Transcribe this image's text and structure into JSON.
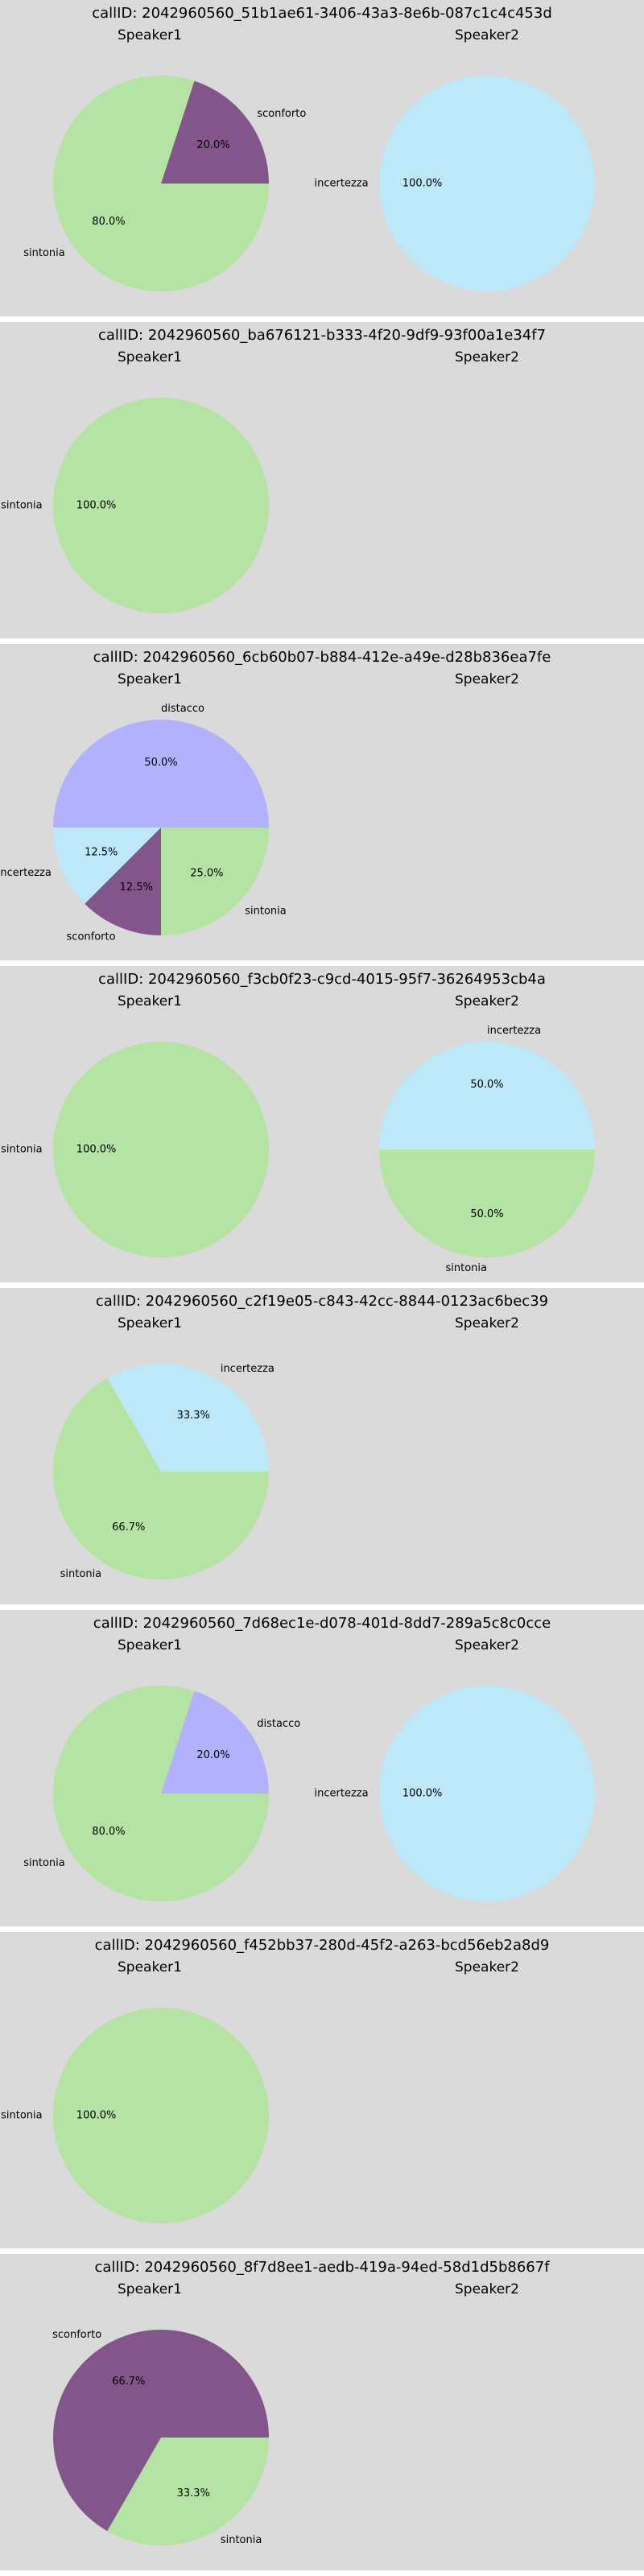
{
  "style": {
    "panel_background": "#dadada",
    "separator": "#ffffff",
    "category_colors": {
      "sintonia": "#b5e3a3",
      "sconforto": "#82568a",
      "incertezza": "#bde8f8",
      "distacco": "#b1b1fd"
    }
  },
  "chart_data": [
    {
      "type": "pie",
      "title": "callID: 2042960560_51b1ae61-3406-43a3-8e6b-087c1c4c453d",
      "speakers": [
        {
          "name": "Speaker1",
          "slices": [
            {
              "label": "sconforto",
              "value": 20.0,
              "pct_text": "20.0%"
            },
            {
              "label": "sintonia",
              "value": 80.0,
              "pct_text": "80.0%"
            }
          ]
        },
        {
          "name": "Speaker2",
          "slices": [
            {
              "label": "incertezza",
              "value": 100.0,
              "pct_text": "100.0%"
            }
          ]
        }
      ]
    },
    {
      "type": "pie",
      "title": "callID: 2042960560_ba676121-b333-4f20-9df9-93f00a1e34f7",
      "speakers": [
        {
          "name": "Speaker1",
          "slices": [
            {
              "label": "sintonia",
              "value": 100.0,
              "pct_text": "100.0%"
            }
          ]
        },
        {
          "name": "Speaker2",
          "slices": []
        }
      ]
    },
    {
      "type": "pie",
      "title": "callID: 2042960560_6cb60b07-b884-412e-a49e-d28b836ea7fe",
      "speakers": [
        {
          "name": "Speaker1",
          "slices": [
            {
              "label": "distacco",
              "value": 50.0,
              "pct_text": "50.0%"
            },
            {
              "label": "incertezza",
              "value": 12.5,
              "pct_text": "12.5%"
            },
            {
              "label": "sconforto",
              "value": 12.5,
              "pct_text": "12.5%"
            },
            {
              "label": "sintonia",
              "value": 25.0,
              "pct_text": "25.0%"
            }
          ]
        },
        {
          "name": "Speaker2",
          "slices": []
        }
      ]
    },
    {
      "type": "pie",
      "title": "callID: 2042960560_f3cb0f23-c9cd-4015-95f7-36264953cb4a",
      "speakers": [
        {
          "name": "Speaker1",
          "slices": [
            {
              "label": "sintonia",
              "value": 100.0,
              "pct_text": "100.0%"
            }
          ]
        },
        {
          "name": "Speaker2",
          "slices": [
            {
              "label": "incertezza",
              "value": 50.0,
              "pct_text": "50.0%"
            },
            {
              "label": "sintonia",
              "value": 50.0,
              "pct_text": "50.0%"
            }
          ]
        }
      ]
    },
    {
      "type": "pie",
      "title": "callID: 2042960560_c2f19e05-c843-42cc-8844-0123ac6bec39",
      "speakers": [
        {
          "name": "Speaker1",
          "slices": [
            {
              "label": "incertezza",
              "value": 33.3,
              "pct_text": "33.3%"
            },
            {
              "label": "sintonia",
              "value": 66.7,
              "pct_text": "66.7%"
            }
          ]
        },
        {
          "name": "Speaker2",
          "slices": []
        }
      ]
    },
    {
      "type": "pie",
      "title": "callID: 2042960560_7d68ec1e-d078-401d-8dd7-289a5c8c0cce",
      "speakers": [
        {
          "name": "Speaker1",
          "slices": [
            {
              "label": "distacco",
              "value": 20.0,
              "pct_text": "20.0%"
            },
            {
              "label": "sintonia",
              "value": 80.0,
              "pct_text": "80.0%"
            }
          ]
        },
        {
          "name": "Speaker2",
          "slices": [
            {
              "label": "incertezza",
              "value": 100.0,
              "pct_text": "100.0%"
            }
          ]
        }
      ]
    },
    {
      "type": "pie",
      "title": "callID: 2042960560_f452bb37-280d-45f2-a263-bcd56eb2a8d9",
      "speakers": [
        {
          "name": "Speaker1",
          "slices": [
            {
              "label": "sintonia",
              "value": 100.0,
              "pct_text": "100.0%"
            }
          ]
        },
        {
          "name": "Speaker2",
          "slices": []
        }
      ]
    },
    {
      "type": "pie",
      "title": "callID: 2042960560_8f7d8ee1-aedb-419a-94ed-58d1d5b8667f",
      "speakers": [
        {
          "name": "Speaker1",
          "slices": [
            {
              "label": "sconforto",
              "value": 66.7,
              "pct_text": "66.7%"
            },
            {
              "label": "sintonia",
              "value": 33.3,
              "pct_text": "33.3%"
            }
          ]
        },
        {
          "name": "Speaker2",
          "slices": []
        }
      ]
    }
  ]
}
